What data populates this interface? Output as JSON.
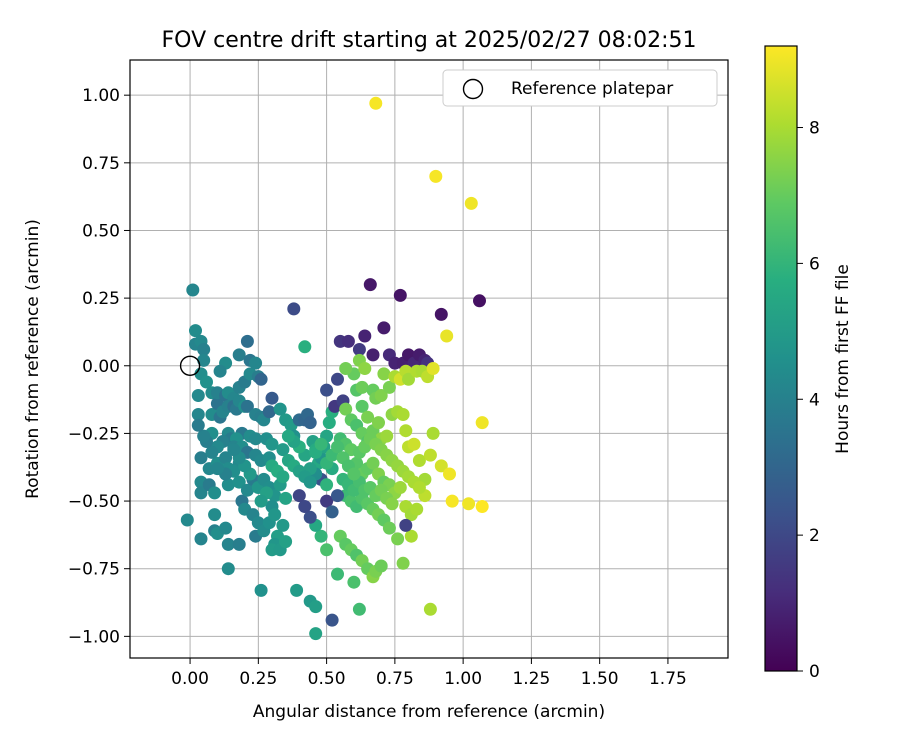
{
  "chart_data": {
    "type": "scatter",
    "title": "FOV centre drift starting at 2025/02/27 08:02:51",
    "xlabel": "Angular distance from reference (arcmin)",
    "ylabel": "Rotation from reference (arcmin)",
    "xlim": [
      -0.22,
      1.97
    ],
    "ylim": [
      -1.08,
      1.13
    ],
    "xticks": [
      0,
      0.25,
      0.5,
      0.75,
      1,
      1.25,
      1.5,
      1.75
    ],
    "xtick_labels": [
      "0.00",
      "0.25",
      "0.50",
      "0.75",
      "1.00",
      "1.25",
      "1.50",
      "1.75"
    ],
    "yticks": [
      -1,
      -0.75,
      -0.5,
      -0.25,
      0,
      0.25,
      0.5,
      0.75,
      1
    ],
    "ytick_labels": [
      "−1.00",
      "−0.75",
      "−0.50",
      "−0.25",
      "0.00",
      "0.25",
      "0.50",
      "0.75",
      "1.00"
    ],
    "grid": true,
    "legend": {
      "placement": "top-right",
      "label": "Reference platepar"
    },
    "reference_point": {
      "x": 0.0,
      "y": 0.0
    },
    "colorbar": {
      "label": "Hours from first FF file",
      "colormap": "viridis",
      "range": [
        0,
        9.2
      ],
      "ticks": [
        0,
        2,
        4,
        6,
        8
      ],
      "tick_labels": [
        "0",
        "2",
        "4",
        "6",
        "8"
      ],
      "stops": [
        "#440154",
        "#472d7b",
        "#3b528b",
        "#2c728e",
        "#21918c",
        "#28ae80",
        "#5ec962",
        "#addc30",
        "#fde725"
      ]
    },
    "points": [
      [
        0.01,
        0.28,
        4.2
      ],
      [
        0.02,
        0.13,
        4.4
      ],
      [
        0.02,
        0.08,
        4.1
      ],
      [
        0.04,
        0.09,
        4.3
      ],
      [
        0.05,
        0.06,
        4.0
      ],
      [
        0.05,
        0.02,
        4.2
      ],
      [
        0.04,
        -0.03,
        4.5
      ],
      [
        0.03,
        -0.11,
        4.3
      ],
      [
        0.06,
        -0.06,
        4.6
      ],
      [
        0.08,
        -0.1,
        4.4
      ],
      [
        0.03,
        -0.18,
        4.2
      ],
      [
        0.08,
        -0.18,
        4.4
      ],
      [
        0.1,
        -0.14,
        3.5
      ],
      [
        0.11,
        -0.19,
        3.6
      ],
      [
        0.12,
        -0.17,
        4.1
      ],
      [
        0.08,
        -0.25,
        4.5
      ],
      [
        0.1,
        -0.1,
        4.0
      ],
      [
        0.13,
        -0.11,
        3.5
      ],
      [
        0.14,
        -0.1,
        4.4
      ],
      [
        0.16,
        -0.12,
        4.2
      ],
      [
        0.18,
        -0.08,
        4.0
      ],
      [
        0.2,
        -0.06,
        3.8
      ],
      [
        0.13,
        0.01,
        4.4
      ],
      [
        0.18,
        0.04,
        3.9
      ],
      [
        0.21,
        0.09,
        3.3
      ],
      [
        0.22,
        0.02,
        3.6
      ],
      [
        0.22,
        -0.03,
        4.3
      ],
      [
        0.24,
        0.01,
        4.2
      ],
      [
        0.25,
        -0.04,
        3.9
      ],
      [
        0.26,
        -0.05,
        3.0
      ],
      [
        0.11,
        -0.02,
        4.1
      ],
      [
        0.14,
        -0.15,
        4.0
      ],
      [
        0.16,
        -0.15,
        3.4
      ],
      [
        0.17,
        -0.16,
        3.7
      ],
      [
        0.18,
        -0.13,
        4.2
      ],
      [
        0.2,
        -0.15,
        4.6
      ],
      [
        0.21,
        -0.15,
        3.5
      ],
      [
        0.19,
        -0.25,
        3.7
      ],
      [
        0.22,
        -0.26,
        4.4
      ],
      [
        0.24,
        -0.18,
        4.0
      ],
      [
        0.26,
        -0.19,
        3.9
      ],
      [
        0.24,
        -0.27,
        4.3
      ],
      [
        0.27,
        -0.2,
        4.2
      ],
      [
        0.29,
        -0.17,
        3.1
      ],
      [
        0.3,
        -0.12,
        2.6
      ],
      [
        0.28,
        -0.27,
        4.5
      ],
      [
        0.3,
        -0.29,
        4.8
      ],
      [
        0.14,
        -0.25,
        4.3
      ],
      [
        0.15,
        -0.27,
        3.8
      ],
      [
        0.17,
        -0.27,
        4.6
      ],
      [
        0.16,
        -0.3,
        4.1
      ],
      [
        0.19,
        -0.3,
        4.5
      ],
      [
        0.21,
        -0.32,
        3.6
      ],
      [
        0.24,
        -0.33,
        4.2
      ],
      [
        0.26,
        -0.35,
        4.3
      ],
      [
        0.29,
        -0.34,
        4.5
      ],
      [
        0.04,
        -0.34,
        3.9
      ],
      [
        0.07,
        -0.38,
        4.2
      ],
      [
        0.1,
        -0.36,
        4.5
      ],
      [
        0.13,
        -0.34,
        4.1
      ],
      [
        0.14,
        -0.38,
        4.4
      ],
      [
        0.18,
        -0.36,
        4.3
      ],
      [
        0.16,
        -0.39,
        4.5
      ],
      [
        0.04,
        -0.43,
        4.3
      ],
      [
        0.04,
        -0.47,
        4.1
      ],
      [
        0.07,
        -0.44,
        3.8
      ],
      [
        0.09,
        -0.47,
        4.5
      ],
      [
        0.14,
        -0.44,
        4.5
      ],
      [
        0.13,
        -0.4,
        4.0
      ],
      [
        0.1,
        -0.38,
        4.2
      ],
      [
        0.18,
        -0.43,
        4.6
      ],
      [
        0.19,
        -0.5,
        3.6
      ],
      [
        0.21,
        -0.46,
        4.3
      ],
      [
        0.23,
        -0.42,
        3.8
      ],
      [
        0.25,
        -0.45,
        4.8
      ],
      [
        0.27,
        -0.42,
        4.4
      ],
      [
        0.29,
        -0.45,
        4.5
      ],
      [
        0.31,
        -0.48,
        4.7
      ],
      [
        0.33,
        -0.44,
        5.0
      ],
      [
        0.3,
        -0.52,
        4.5
      ],
      [
        0.2,
        -0.53,
        4.3
      ],
      [
        0.23,
        -0.55,
        4.1
      ],
      [
        0.25,
        -0.58,
        4.3
      ],
      [
        0.24,
        -0.63,
        3.8
      ],
      [
        0.27,
        -0.61,
        4.4
      ],
      [
        0.29,
        -0.58,
        4.6
      ],
      [
        0.31,
        -0.55,
        4.8
      ],
      [
        0.32,
        -0.63,
        5.1
      ],
      [
        0.34,
        -0.59,
        4.9
      ],
      [
        0.35,
        -0.49,
        5.3
      ],
      [
        -0.01,
        -0.57,
        4.3
      ],
      [
        0.04,
        -0.64,
        4.1
      ],
      [
        0.09,
        -0.55,
        4.4
      ],
      [
        0.09,
        -0.61,
        4.0
      ],
      [
        0.1,
        -0.62,
        4.5
      ],
      [
        0.13,
        -0.6,
        4.3
      ],
      [
        0.14,
        -0.66,
        4.1
      ],
      [
        0.18,
        -0.66,
        3.9
      ],
      [
        0.14,
        -0.75,
        4.4
      ],
      [
        0.26,
        -0.83,
        4.6
      ],
      [
        0.31,
        -0.66,
        4.8
      ],
      [
        0.3,
        -0.68,
        5.0
      ],
      [
        0.33,
        -0.68,
        4.9
      ],
      [
        0.35,
        -0.65,
        5.2
      ],
      [
        0.39,
        -0.83,
        5.0
      ],
      [
        0.44,
        -0.87,
        4.9
      ],
      [
        0.46,
        -0.89,
        5.1
      ],
      [
        0.46,
        -0.99,
        5.3
      ],
      [
        0.52,
        -0.94,
        2.4
      ],
      [
        0.33,
        -0.16,
        4.7
      ],
      [
        0.35,
        -0.2,
        4.9
      ],
      [
        0.37,
        -0.22,
        5.0
      ],
      [
        0.38,
        -0.26,
        4.6
      ],
      [
        0.4,
        -0.2,
        3.2
      ],
      [
        0.42,
        -0.2,
        3.0
      ],
      [
        0.43,
        -0.18,
        3.1
      ],
      [
        0.44,
        -0.21,
        2.9
      ],
      [
        0.45,
        -0.28,
        5.2
      ],
      [
        0.46,
        -0.31,
        5.6
      ],
      [
        0.47,
        -0.36,
        5.5
      ],
      [
        0.48,
        -0.34,
        4.8
      ],
      [
        0.49,
        -0.3,
        5.3
      ],
      [
        0.5,
        -0.26,
        5.4
      ],
      [
        0.51,
        -0.21,
        5.7
      ],
      [
        0.52,
        -0.17,
        5.8
      ],
      [
        0.53,
        -0.15,
        1.5
      ],
      [
        0.54,
        -0.05,
        2.0
      ],
      [
        0.5,
        -0.09,
        2.2
      ],
      [
        0.56,
        -0.13,
        1.8
      ],
      [
        0.55,
        0.09,
        1.4
      ],
      [
        0.58,
        0.09,
        1.2
      ],
      [
        0.62,
        0.06,
        1.6
      ],
      [
        0.64,
        0.11,
        0.9
      ],
      [
        0.66,
        0.3,
        0.6
      ],
      [
        0.67,
        0.04,
        0.8
      ],
      [
        0.71,
        0.14,
        0.7
      ],
      [
        0.73,
        0.04,
        1.1
      ],
      [
        0.75,
        0.01,
        0.9
      ],
      [
        0.77,
        0.26,
        0.5
      ],
      [
        0.78,
        0.01,
        0.8
      ],
      [
        0.8,
        0.04,
        0.6
      ],
      [
        0.82,
        0.01,
        1.0
      ],
      [
        0.84,
        0.04,
        0.7
      ],
      [
        0.86,
        0.02,
        0.9
      ],
      [
        0.87,
        0.01,
        1.3
      ],
      [
        0.92,
        0.19,
        0.5
      ],
      [
        1.06,
        0.24,
        0.4
      ],
      [
        0.38,
        0.21,
        2.1
      ],
      [
        0.42,
        0.07,
        5.8
      ],
      [
        0.6,
        -0.03,
        7.0
      ],
      [
        0.61,
        -0.09,
        6.7
      ],
      [
        0.63,
        -0.08,
        7.1
      ],
      [
        0.63,
        -0.15,
        6.8
      ],
      [
        0.65,
        -0.19,
        7.3
      ],
      [
        0.67,
        -0.09,
        7.0
      ],
      [
        0.68,
        -0.12,
        7.2
      ],
      [
        0.7,
        -0.11,
        7.4
      ],
      [
        0.71,
        -0.03,
        7.5
      ],
      [
        0.73,
        -0.08,
        7.3
      ],
      [
        0.75,
        -0.04,
        8.0
      ],
      [
        0.77,
        -0.05,
        8.6
      ],
      [
        0.79,
        -0.02,
        8.2
      ],
      [
        0.8,
        -0.05,
        7.9
      ],
      [
        0.83,
        -0.02,
        8.1
      ],
      [
        0.85,
        -0.02,
        8.0
      ],
      [
        0.87,
        -0.04,
        8.3
      ],
      [
        0.89,
        -0.01,
        8.8
      ],
      [
        0.62,
        0.02,
        7.4
      ],
      [
        0.64,
        -0.01,
        7.6
      ],
      [
        0.57,
        -0.01,
        7.2
      ],
      [
        0.57,
        -0.16,
        7.2
      ],
      [
        0.59,
        -0.2,
        6.9
      ],
      [
        0.61,
        -0.22,
        6.5
      ],
      [
        0.63,
        -0.25,
        7.0
      ],
      [
        0.65,
        -0.28,
        6.7
      ],
      [
        0.67,
        -0.24,
        7.1
      ],
      [
        0.69,
        -0.21,
        7.4
      ],
      [
        0.7,
        -0.27,
        7.6
      ],
      [
        0.72,
        -0.26,
        7.8
      ],
      [
        0.74,
        -0.18,
        7.6
      ],
      [
        0.76,
        -0.17,
        7.9
      ],
      [
        0.78,
        -0.18,
        8.0
      ],
      [
        0.79,
        -0.24,
        8.1
      ],
      [
        0.8,
        -0.3,
        8.3
      ],
      [
        0.82,
        -0.29,
        8.5
      ],
      [
        0.84,
        -0.35,
        8.1
      ],
      [
        0.86,
        -0.42,
        7.9
      ],
      [
        0.88,
        -0.33,
        8.3
      ],
      [
        0.89,
        -0.25,
        8.0
      ],
      [
        0.92,
        -0.37,
        8.6
      ],
      [
        0.95,
        -0.4,
        9.0
      ],
      [
        0.96,
        -0.5,
        9.1
      ],
      [
        1.02,
        -0.51,
        9.0
      ],
      [
        1.07,
        -0.52,
        9.2
      ],
      [
        1.07,
        -0.21,
        9.0
      ],
      [
        0.94,
        0.11,
        8.9
      ],
      [
        0.9,
        0.7,
        9.1
      ],
      [
        1.03,
        0.6,
        9.0
      ],
      [
        0.68,
        0.97,
        9.1
      ],
      [
        0.55,
        -0.27,
        6.3
      ],
      [
        0.57,
        -0.29,
        6.6
      ],
      [
        0.59,
        -0.31,
        6.9
      ],
      [
        0.61,
        -0.36,
        6.7
      ],
      [
        0.63,
        -0.4,
        7.0
      ],
      [
        0.65,
        -0.38,
        6.9
      ],
      [
        0.67,
        -0.36,
        7.2
      ],
      [
        0.69,
        -0.4,
        7.4
      ],
      [
        0.71,
        -0.43,
        7.0
      ],
      [
        0.73,
        -0.44,
        7.3
      ],
      [
        0.75,
        -0.47,
        7.6
      ],
      [
        0.77,
        -0.45,
        7.8
      ],
      [
        0.79,
        -0.52,
        8.0
      ],
      [
        0.81,
        -0.55,
        7.9
      ],
      [
        0.83,
        -0.53,
        8.0
      ],
      [
        0.86,
        -0.48,
        8.3
      ],
      [
        0.57,
        -0.48,
        6.2
      ],
      [
        0.59,
        -0.5,
        6.5
      ],
      [
        0.61,
        -0.52,
        6.3
      ],
      [
        0.63,
        -0.49,
        6.6
      ],
      [
        0.65,
        -0.51,
        6.8
      ],
      [
        0.67,
        -0.53,
        7.0
      ],
      [
        0.69,
        -0.55,
        7.2
      ],
      [
        0.71,
        -0.57,
        6.9
      ],
      [
        0.73,
        -0.6,
        7.1
      ],
      [
        0.76,
        -0.64,
        7.3
      ],
      [
        0.78,
        -0.73,
        7.4
      ],
      [
        0.81,
        -0.63,
        8.0
      ],
      [
        0.88,
        -0.9,
        8.0
      ],
      [
        0.79,
        -0.59,
        1.8
      ],
      [
        0.55,
        -0.63,
        7.0
      ],
      [
        0.57,
        -0.66,
        6.8
      ],
      [
        0.59,
        -0.68,
        7.0
      ],
      [
        0.61,
        -0.7,
        6.6
      ],
      [
        0.63,
        -0.72,
        7.2
      ],
      [
        0.65,
        -0.75,
        7.0
      ],
      [
        0.67,
        -0.78,
        7.5
      ],
      [
        0.68,
        -0.76,
        7.3
      ],
      [
        0.7,
        -0.74,
        7.1
      ],
      [
        0.6,
        -0.8,
        6.5
      ],
      [
        0.62,
        -0.9,
        6.3
      ],
      [
        0.54,
        -0.77,
        6.2
      ],
      [
        0.5,
        -0.68,
        6.5
      ],
      [
        0.48,
        -0.63,
        6.0
      ],
      [
        0.46,
        -0.59,
        5.5
      ],
      [
        0.44,
        -0.56,
        2.2
      ],
      [
        0.42,
        -0.52,
        2.0
      ],
      [
        0.4,
        -0.48,
        1.9
      ],
      [
        0.5,
        -0.5,
        1.6
      ],
      [
        0.52,
        -0.54,
        2.8
      ],
      [
        0.54,
        -0.48,
        2.5
      ],
      [
        0.48,
        -0.42,
        2.3
      ],
      [
        0.46,
        -0.4,
        4.5
      ],
      [
        0.44,
        -0.38,
        5.2
      ],
      [
        0.42,
        -0.33,
        5.4
      ],
      [
        0.4,
        -0.3,
        5.8
      ],
      [
        0.38,
        -0.28,
        5.3
      ],
      [
        0.36,
        -0.26,
        5.5
      ],
      [
        0.34,
        -0.31,
        5.0
      ],
      [
        0.52,
        -0.38,
        5.6
      ],
      [
        0.5,
        -0.44,
        5.9
      ],
      [
        0.56,
        -0.42,
        6.0
      ],
      [
        0.58,
        -0.44,
        6.1
      ],
      [
        0.6,
        -0.46,
        6.3
      ],
      [
        0.62,
        -0.43,
        6.4
      ],
      [
        0.64,
        -0.46,
        6.6
      ],
      [
        0.66,
        -0.45,
        6.8
      ],
      [
        0.68,
        -0.48,
        7.0
      ],
      [
        0.7,
        -0.46,
        7.2
      ],
      [
        0.72,
        -0.49,
        7.3
      ],
      [
        0.74,
        -0.51,
        7.5
      ],
      [
        0.36,
        -0.35,
        5.4
      ],
      [
        0.38,
        -0.37,
        5.6
      ],
      [
        0.4,
        -0.39,
        5.2
      ],
      [
        0.42,
        -0.41,
        5.0
      ],
      [
        0.44,
        -0.43,
        4.8
      ],
      [
        0.46,
        -0.32,
        5.7
      ],
      [
        0.48,
        -0.29,
        6.1
      ],
      [
        0.5,
        -0.36,
        6.0
      ],
      [
        0.52,
        -0.33,
        6.2
      ],
      [
        0.54,
        -0.3,
        6.4
      ],
      [
        0.56,
        -0.34,
        6.6
      ],
      [
        0.58,
        -0.37,
        6.5
      ],
      [
        0.6,
        -0.4,
        6.7
      ],
      [
        0.62,
        -0.32,
        6.8
      ],
      [
        0.64,
        -0.3,
        7.0
      ],
      [
        0.66,
        -0.27,
        7.1
      ],
      [
        0.68,
        -0.29,
        7.3
      ],
      [
        0.7,
        -0.31,
        7.4
      ],
      [
        0.72,
        -0.33,
        7.5
      ],
      [
        0.74,
        -0.35,
        7.6
      ],
      [
        0.76,
        -0.37,
        7.7
      ],
      [
        0.78,
        -0.39,
        7.8
      ],
      [
        0.8,
        -0.41,
        7.9
      ],
      [
        0.82,
        -0.43,
        8.0
      ],
      [
        0.84,
        -0.45,
        8.1
      ],
      [
        0.3,
        -0.37,
        5.6
      ],
      [
        0.32,
        -0.39,
        5.7
      ],
      [
        0.34,
        -0.41,
        5.5
      ],
      [
        0.28,
        -0.47,
        5.2
      ],
      [
        0.26,
        -0.5,
        5.0
      ],
      [
        0.22,
        -0.4,
        4.9
      ],
      [
        0.2,
        -0.37,
        4.7
      ],
      [
        0.18,
        -0.34,
        4.4
      ],
      [
        0.16,
        -0.31,
        4.2
      ],
      [
        0.12,
        -0.28,
        4.0
      ],
      [
        0.1,
        -0.3,
        4.3
      ],
      [
        0.08,
        -0.32,
        4.1
      ],
      [
        0.06,
        -0.28,
        3.9
      ],
      [
        0.05,
        -0.26,
        4.0
      ],
      [
        0.03,
        -0.22,
        3.8
      ]
    ]
  }
}
